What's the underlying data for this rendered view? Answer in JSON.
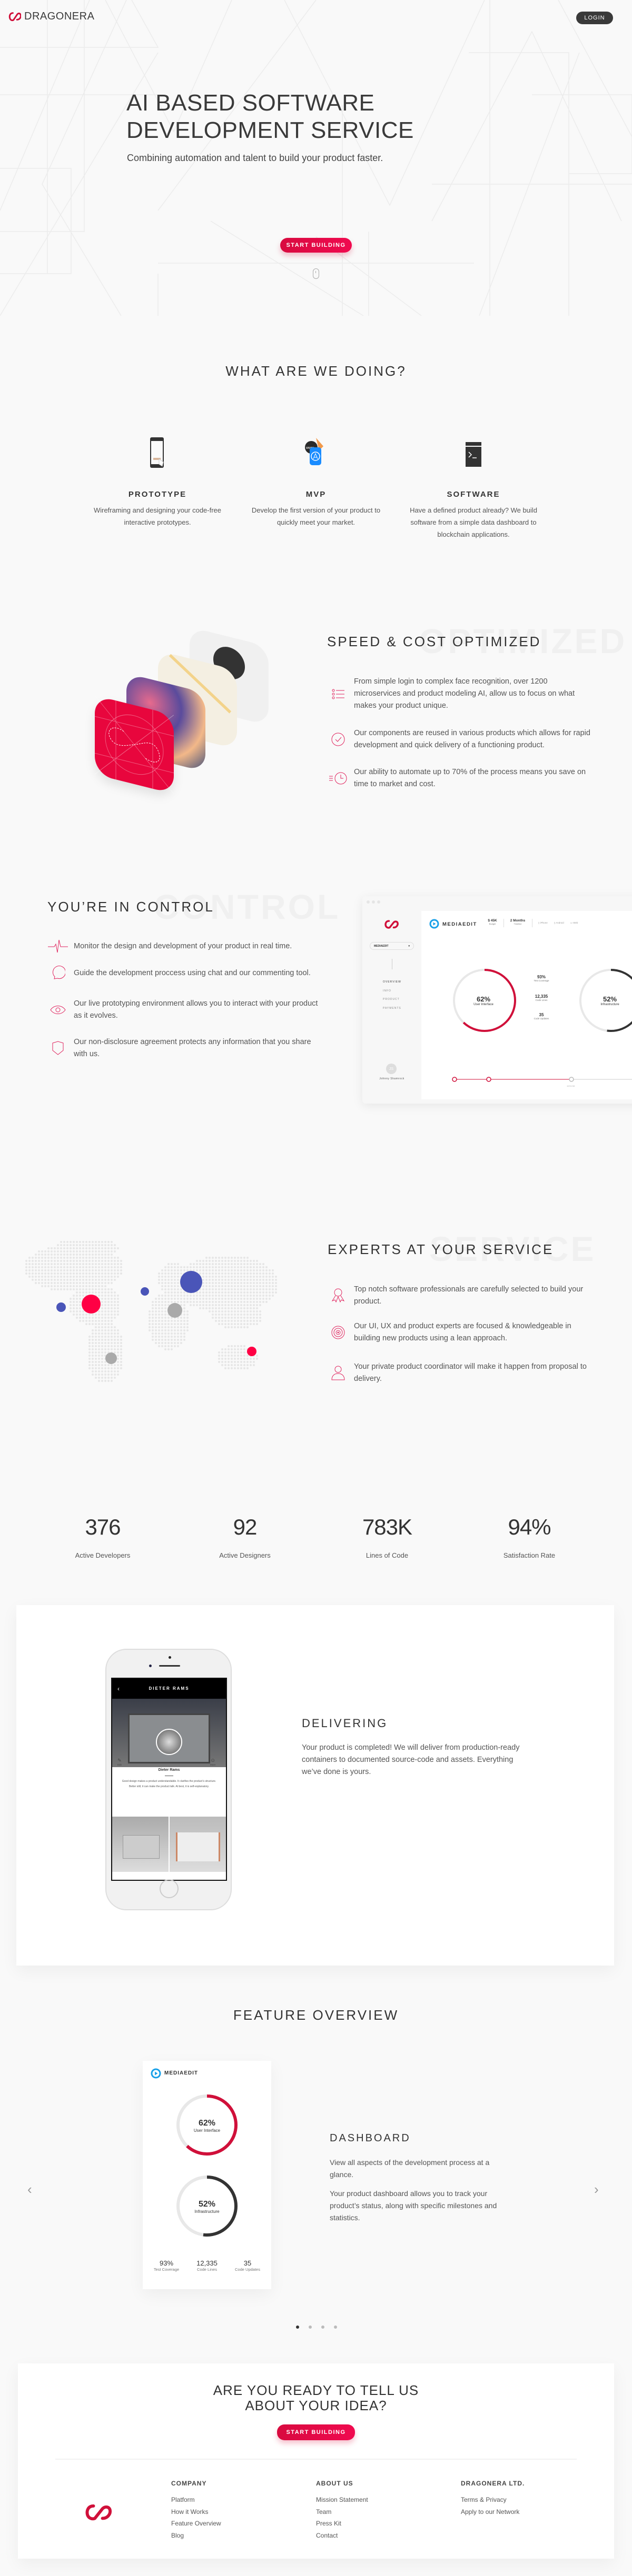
{
  "colors": {
    "accent": "#e00a45",
    "dark": "#3a3a3a",
    "map_blue": "#4a55b8",
    "map_red": "#ff0044",
    "map_gray": "#aaaaaa",
    "chart_dark": "#333333"
  },
  "header": {
    "brand_bold": "DRAGON",
    "brand_light": "ERA",
    "login": "LOGIN"
  },
  "hero": {
    "title_line1": "AI BASED SOFTWARE",
    "title_line2": "DEVELOPMENT SERVICE",
    "subtitle": "Combining automation and talent to build your product faster.",
    "cta": "START BUILDING",
    "scroll_icon": "mouse-icon"
  },
  "what": {
    "title": "WHAT ARE WE DOING?",
    "items": [
      {
        "label": "PROTOTYPE",
        "desc": "Wireframing and designing your code-free interactive prototypes.",
        "icon": "phone-prototype-icon"
      },
      {
        "label": "MVP",
        "desc": "Develop the first version of your product to quickly meet your market.",
        "icon": "app-store-icon"
      },
      {
        "label": "SOFTWARE",
        "desc": "Have a defined product already? We build software from a simple data dashboard to blockchain applications.",
        "icon": "terminal-icon"
      }
    ]
  },
  "speed": {
    "title": "SPEED & COST OPTIMIZED",
    "watermark": "OPTIMIZED",
    "items": [
      {
        "text": "From simple login to complex face recognition, over 1200 microservices and product modeling AI, allow us to focus on what makes your product unique.",
        "icon": "list-icon"
      },
      {
        "text": "Our components are reused in various products which allows for rapid development and quick delivery of a functioning product.",
        "icon": "check-circle-icon"
      },
      {
        "text": "Our ability to automate up to 70% of the process means you save on time to market and cost.",
        "icon": "fast-clock-icon"
      }
    ]
  },
  "control": {
    "title": "YOU’RE IN CONTROL",
    "watermark": "CONTROL",
    "items": [
      {
        "text": "Monitor the design and development of your product in real time.",
        "icon": "pulse-icon"
      },
      {
        "text": "Guide the development proccess using chat and our commenting tool.",
        "icon": "chat-icon"
      },
      {
        "text": "Our live prototyping environment allows you to interact with your product as it evolves.",
        "icon": "eye-icon"
      },
      {
        "text": "Our non-disclosure agreement protects any information that you share with us.",
        "icon": "shield-icon"
      }
    ],
    "dashboard": {
      "project": "MEDIAEDIT",
      "select": "MEDIAEDIT",
      "budget": "$ 45K",
      "budget_label": "Budget",
      "timeline": "2 Months",
      "timeline_label": "Timeline",
      "platforms": [
        "iPhone",
        "Android",
        "Web"
      ],
      "nav": [
        "OVERVIEW",
        "INFO",
        "PRODUCT",
        "PAYMENTS"
      ],
      "user_initials": "JS",
      "user_name": "Johnny Shamrock",
      "donuts": [
        {
          "value": "62%",
          "pct": 62,
          "label": "User Interface",
          "color": "#d0103a"
        },
        {
          "value": "52%",
          "pct": 52,
          "label": "Infrastructure",
          "color": "#333333"
        }
      ],
      "stats": [
        {
          "value": "93%",
          "label": "Test Coverage"
        },
        {
          "value": "12,335",
          "label": "Code Lines"
        },
        {
          "value": "35",
          "label": "Code Updates"
        }
      ],
      "milestone_date": "12/11/16"
    }
  },
  "experts": {
    "title": "EXPERTS AT YOUR SERVICE",
    "watermark": "SERVICE",
    "items": [
      {
        "text": "Top notch software professionals are carefully selected to build your product.",
        "icon": "award-icon"
      },
      {
        "text": "Our UI, UX and product experts are focused & knowledgeable in building new products using a lean approach.",
        "icon": "target-icon"
      },
      {
        "text": "Your private product coordinator will make it happen from proposal to delivery.",
        "icon": "user-icon"
      }
    ]
  },
  "stats": [
    {
      "value": "376",
      "label": "Active Developers"
    },
    {
      "value": "92",
      "label": "Active Designers"
    },
    {
      "value": "783K",
      "label": "Lines of Code"
    },
    {
      "value": "94%",
      "label": "Satisfaction Rate"
    }
  ],
  "delivering": {
    "title": "DELIVERING",
    "text": "Your product is completed! We will deliver from production-ready containers to documented source-code and assets. Everything we’ve done is yours.",
    "phone": {
      "title": "DIETER RAMS",
      "name": "Dieter Rams",
      "edit": "Edit",
      "more": "More",
      "quote": "Good design makes a product understandable. It clarifies the product’s structure. Better still, it can make the product talk. At best, it is self-explanatory."
    }
  },
  "feature": {
    "title": "FEATURE OVERVIEW",
    "card_brand": "MEDIAEDIT",
    "slide_title": "DASHBOARD",
    "p1": "View all aspects of the development process at a glance.",
    "p2": "Your product dashboard allows you to track your product’s status, along with specific milestones and statistics.",
    "slides": 4,
    "active_slide": 1
  },
  "footer": {
    "cta_line1": "ARE YOU READY TO TELL US",
    "cta_line2": "ABOUT YOUR IDEA?",
    "cta": "START BUILDING",
    "columns": [
      {
        "heading": "COMPANY",
        "links": [
          "Platform",
          "How it Works",
          "Feature Overview",
          "Blog"
        ]
      },
      {
        "heading": "ABOUT US",
        "links": [
          "Mission Statement",
          "Team",
          "Press Kit",
          "Contact"
        ]
      },
      {
        "heading": "DRAGONERA LTD.",
        "links": [
          "Terms & Privacy",
          "Apply to our Network"
        ]
      }
    ]
  }
}
